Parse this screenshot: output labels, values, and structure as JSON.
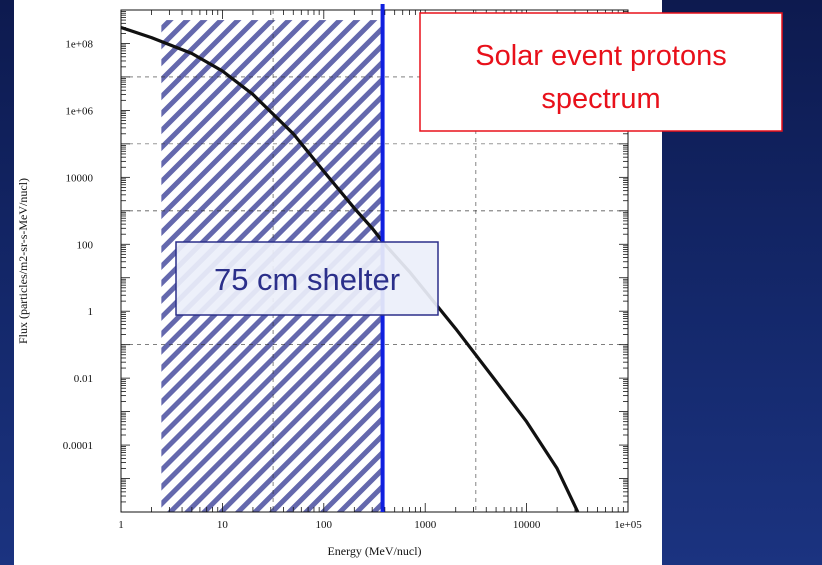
{
  "chart_data": {
    "type": "line",
    "xlabel": "Energy (MeV/nucl)",
    "ylabel": "Flux (particles/m2-sr-s-MeV/nucl)",
    "x_scale": "log",
    "y_scale": "log",
    "xlim": [
      1,
      100000
    ],
    "ylim": [
      1e-06,
      1000000000
    ],
    "grid": true,
    "x_ticks": [
      {
        "value": 1,
        "label": "1"
      },
      {
        "value": 10,
        "label": "10"
      },
      {
        "value": 100,
        "label": "100"
      },
      {
        "value": 1000,
        "label": "1000"
      },
      {
        "value": 10000,
        "label": "10000"
      },
      {
        "value": 100000,
        "label": "1e+05"
      }
    ],
    "y_ticks": [
      {
        "value": 100000000,
        "label": "1e+08"
      },
      {
        "value": 1000000,
        "label": "1e+06"
      },
      {
        "value": 10000,
        "label": "10000"
      },
      {
        "value": 100,
        "label": "100"
      },
      {
        "value": 1,
        "label": "1"
      },
      {
        "value": 0.01,
        "label": "0.01"
      },
      {
        "value": 0.0001,
        "label": "0.0001"
      }
    ],
    "series": [
      {
        "x": [
          1,
          2,
          5,
          10,
          20,
          50,
          100,
          200,
          300,
          400,
          700,
          1000,
          2000,
          5000,
          10000,
          20000,
          32000
        ],
        "y": [
          300000000,
          150000000,
          50000000,
          15000000,
          3000000,
          200000,
          15000,
          1200,
          300,
          100,
          15,
          4,
          0.3,
          0.008,
          0.0005,
          2e-05,
          1e-06
        ]
      }
    ],
    "shaded_region": {
      "x_start": 2.5,
      "x_end": 380,
      "y_start": 1e-06,
      "y_end": 500000000,
      "color": "#5a5ea8"
    },
    "vertical_line": {
      "x": 380,
      "color": "#1020e0"
    },
    "annotations": [
      {
        "text": "Solar event protons spectrum",
        "lines": [
          "Solar event protons",
          "spectrum"
        ],
        "color": "#e8101a",
        "border": "#e8101a"
      },
      {
        "text": "75 cm shelter",
        "color": "#2b2f8a",
        "border": "#2b2f8a"
      }
    ]
  }
}
